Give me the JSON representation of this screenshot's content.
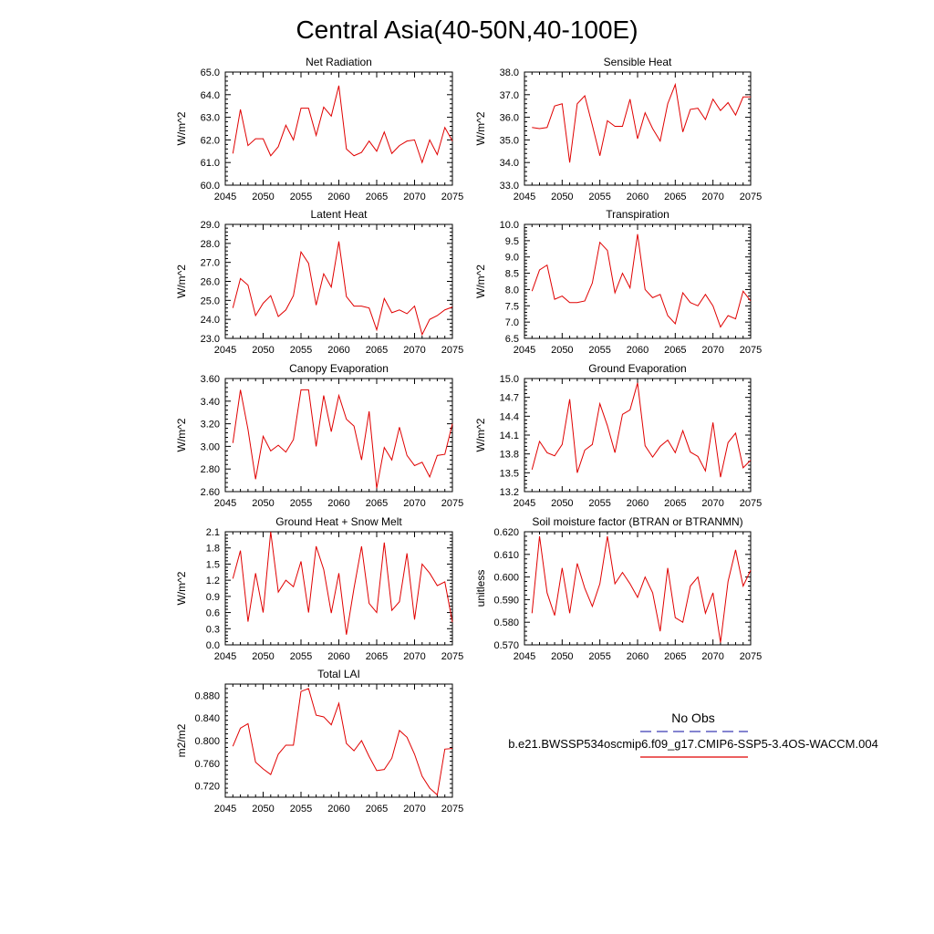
{
  "figure": {
    "title": "Central Asia(40-50N,40-100E)",
    "legend": {
      "obs_label": "No Obs",
      "model_label": "b.e21.BWSSP534oscmip6.f09_g17.CMIP6-SSP5-3.4OS-WACCM.004",
      "obs_color": "#3b3bb5",
      "model_color": "#e00000"
    },
    "line_color": "#e00000"
  },
  "chart_data": [
    {
      "type": "line",
      "title": "Net Radiation",
      "ylabel": "W/m^2",
      "xlim": [
        2045,
        2075
      ],
      "ylim": [
        60.0,
        65.0
      ],
      "xticks": [
        "2045",
        "2050",
        "2055",
        "2060",
        "2065",
        "2070",
        "2075"
      ],
      "yticks": [
        "60.0",
        "61.0",
        "62.0",
        "63.0",
        "64.0",
        "65.0"
      ],
      "yticks_values": [
        60.0,
        61.0,
        62.0,
        63.0,
        64.0,
        65.0
      ],
      "x": [
        2046,
        2047,
        2048,
        2049,
        2050,
        2051,
        2052,
        2053,
        2054,
        2055,
        2056,
        2057,
        2058,
        2059,
        2060,
        2061,
        2062,
        2063,
        2064,
        2065,
        2066,
        2067,
        2068,
        2069,
        2070,
        2071,
        2072,
        2073,
        2074,
        2075
      ],
      "values": [
        61.4,
        63.35,
        61.75,
        62.05,
        62.05,
        61.3,
        61.7,
        62.65,
        62.0,
        63.4,
        63.4,
        62.2,
        63.45,
        63.05,
        64.4,
        61.6,
        61.3,
        61.45,
        61.95,
        61.5,
        62.35,
        61.4,
        61.75,
        61.95,
        62.0,
        61.0,
        62.0,
        61.35,
        62.55,
        61.95
      ]
    },
    {
      "type": "line",
      "title": "Sensible Heat",
      "ylabel": "W/m^2",
      "xlim": [
        2045,
        2075
      ],
      "ylim": [
        33.0,
        38.0
      ],
      "xticks": [
        "2045",
        "2050",
        "2055",
        "2060",
        "2065",
        "2070",
        "2075"
      ],
      "yticks": [
        "33.0",
        "34.0",
        "35.0",
        "36.0",
        "37.0",
        "38.0"
      ],
      "yticks_values": [
        33.0,
        34.0,
        35.0,
        36.0,
        37.0,
        38.0
      ],
      "x": [
        2046,
        2047,
        2048,
        2049,
        2050,
        2051,
        2052,
        2053,
        2054,
        2055,
        2056,
        2057,
        2058,
        2059,
        2060,
        2061,
        2062,
        2063,
        2064,
        2065,
        2066,
        2067,
        2068,
        2069,
        2070,
        2071,
        2072,
        2073,
        2074,
        2075
      ],
      "values": [
        35.55,
        35.5,
        35.55,
        36.5,
        36.6,
        34.0,
        36.6,
        36.95,
        35.65,
        34.3,
        35.85,
        35.6,
        35.6,
        36.8,
        35.05,
        36.2,
        35.5,
        34.95,
        36.6,
        37.45,
        35.35,
        36.35,
        36.4,
        35.9,
        36.8,
        36.3,
        36.65,
        36.1,
        36.9,
        36.9
      ]
    },
    {
      "type": "line",
      "title": "Latent Heat",
      "ylabel": "W/m^2",
      "xlim": [
        2045,
        2075
      ],
      "ylim": [
        23.0,
        29.0
      ],
      "xticks": [
        "2045",
        "2050",
        "2055",
        "2060",
        "2065",
        "2070",
        "2075"
      ],
      "yticks": [
        "23.0",
        "24.0",
        "25.0",
        "26.0",
        "27.0",
        "28.0",
        "29.0"
      ],
      "yticks_values": [
        23.0,
        24.0,
        25.0,
        26.0,
        27.0,
        28.0,
        29.0
      ],
      "x": [
        2046,
        2047,
        2048,
        2049,
        2050,
        2051,
        2052,
        2053,
        2054,
        2055,
        2056,
        2057,
        2058,
        2059,
        2060,
        2061,
        2062,
        2063,
        2064,
        2065,
        2066,
        2067,
        2068,
        2069,
        2070,
        2071,
        2072,
        2073,
        2074,
        2075
      ],
      "values": [
        24.6,
        26.15,
        25.8,
        24.2,
        24.85,
        25.25,
        24.15,
        24.5,
        25.25,
        27.55,
        26.95,
        24.75,
        26.4,
        25.7,
        28.1,
        25.2,
        24.7,
        24.7,
        24.6,
        23.45,
        25.1,
        24.35,
        24.5,
        24.3,
        24.7,
        23.2,
        24.0,
        24.2,
        24.5,
        24.65
      ]
    },
    {
      "type": "line",
      "title": "Transpiration",
      "ylabel": "W/m^2",
      "xlim": [
        2045,
        2075
      ],
      "ylim": [
        6.5,
        10.0
      ],
      "xticks": [
        "2045",
        "2050",
        "2055",
        "2060",
        "2065",
        "2070",
        "2075"
      ],
      "yticks": [
        "6.5",
        "7.0",
        "7.5",
        "8.0",
        "8.5",
        "9.0",
        "9.5",
        "10.0"
      ],
      "yticks_values": [
        6.5,
        7.0,
        7.5,
        8.0,
        8.5,
        9.0,
        9.5,
        10.0
      ],
      "x": [
        2046,
        2047,
        2048,
        2049,
        2050,
        2051,
        2052,
        2053,
        2054,
        2055,
        2056,
        2057,
        2058,
        2059,
        2060,
        2061,
        2062,
        2063,
        2064,
        2065,
        2066,
        2067,
        2068,
        2069,
        2070,
        2071,
        2072,
        2073,
        2074,
        2075
      ],
      "values": [
        7.95,
        8.6,
        8.75,
        7.7,
        7.8,
        7.6,
        7.6,
        7.65,
        8.2,
        9.45,
        9.2,
        7.9,
        8.5,
        8.05,
        9.7,
        8.0,
        7.75,
        7.85,
        7.2,
        6.95,
        7.9,
        7.6,
        7.5,
        7.85,
        7.5,
        6.85,
        7.2,
        7.1,
        7.95,
        7.65
      ]
    },
    {
      "type": "line",
      "title": "Canopy Evaporation",
      "ylabel": "W/m^2",
      "xlim": [
        2045,
        2075
      ],
      "ylim": [
        2.6,
        3.6
      ],
      "xticks": [
        "2045",
        "2050",
        "2055",
        "2060",
        "2065",
        "2070",
        "2075"
      ],
      "yticks": [
        "2.60",
        "2.80",
        "3.00",
        "3.20",
        "3.40",
        "3.60"
      ],
      "yticks_values": [
        2.6,
        2.8,
        3.0,
        3.2,
        3.4,
        3.6
      ],
      "x": [
        2046,
        2047,
        2048,
        2049,
        2050,
        2051,
        2052,
        2053,
        2054,
        2055,
        2056,
        2057,
        2058,
        2059,
        2060,
        2061,
        2062,
        2063,
        2064,
        2065,
        2066,
        2067,
        2068,
        2069,
        2070,
        2071,
        2072,
        2073,
        2074,
        2075
      ],
      "values": [
        3.03,
        3.5,
        3.15,
        2.71,
        3.09,
        2.96,
        3.01,
        2.95,
        3.06,
        3.5,
        3.5,
        3.0,
        3.45,
        3.13,
        3.45,
        3.24,
        3.18,
        2.88,
        3.31,
        2.63,
        2.99,
        2.88,
        3.17,
        2.92,
        2.83,
        2.86,
        2.73,
        2.92,
        2.93,
        3.2
      ]
    },
    {
      "type": "line",
      "title": "Ground Evaporation",
      "ylabel": "W/m^2",
      "xlim": [
        2045,
        2075
      ],
      "ylim": [
        13.2,
        15.0
      ],
      "xticks": [
        "2045",
        "2050",
        "2055",
        "2060",
        "2065",
        "2070",
        "2075"
      ],
      "yticks": [
        "13.2",
        "13.5",
        "13.8",
        "14.1",
        "14.4",
        "14.7",
        "15.0"
      ],
      "yticks_values": [
        13.2,
        13.5,
        13.8,
        14.1,
        14.4,
        14.7,
        15.0
      ],
      "x": [
        2046,
        2047,
        2048,
        2049,
        2050,
        2051,
        2052,
        2053,
        2054,
        2055,
        2056,
        2057,
        2058,
        2059,
        2060,
        2061,
        2062,
        2063,
        2064,
        2065,
        2066,
        2067,
        2068,
        2069,
        2070,
        2071,
        2072,
        2073,
        2074,
        2075
      ],
      "values": [
        13.55,
        14.0,
        13.82,
        13.77,
        13.95,
        14.67,
        13.5,
        13.86,
        13.95,
        14.6,
        14.25,
        13.82,
        14.43,
        14.5,
        14.93,
        13.93,
        13.75,
        13.92,
        14.02,
        13.82,
        14.17,
        13.83,
        13.76,
        13.53,
        14.3,
        13.43,
        13.98,
        14.13,
        13.58,
        13.7
      ]
    },
    {
      "type": "line",
      "title": "Ground Heat + Snow Melt",
      "ylabel": "W/m^2",
      "xlim": [
        2045,
        2075
      ],
      "ylim": [
        0.0,
        2.1
      ],
      "xticks": [
        "2045",
        "2050",
        "2055",
        "2060",
        "2065",
        "2070",
        "2075"
      ],
      "yticks": [
        "0.0",
        "0.3",
        "0.6",
        "0.9",
        "1.2",
        "1.5",
        "1.8",
        "2.1"
      ],
      "yticks_values": [
        0.0,
        0.3,
        0.6,
        0.9,
        1.2,
        1.5,
        1.8,
        2.1
      ],
      "x": [
        2046,
        2047,
        2048,
        2049,
        2050,
        2051,
        2052,
        2053,
        2054,
        2055,
        2056,
        2057,
        2058,
        2059,
        2060,
        2061,
        2062,
        2063,
        2064,
        2065,
        2066,
        2067,
        2068,
        2069,
        2070,
        2071,
        2072,
        2073,
        2074,
        2075
      ],
      "values": [
        1.23,
        1.75,
        0.43,
        1.33,
        0.6,
        2.1,
        0.98,
        1.2,
        1.08,
        1.55,
        0.6,
        1.83,
        1.4,
        0.59,
        1.33,
        0.19,
        1.05,
        1.83,
        0.77,
        0.6,
        1.9,
        0.64,
        0.8,
        1.7,
        0.47,
        1.5,
        1.33,
        1.1,
        1.17,
        0.42
      ]
    },
    {
      "type": "line",
      "title": "Soil moisture factor (BTRAN or BTRANMN)",
      "ylabel": "unitless",
      "xlim": [
        2045,
        2075
      ],
      "ylim": [
        0.57,
        0.62
      ],
      "xticks": [
        "2045",
        "2050",
        "2055",
        "2060",
        "2065",
        "2070",
        "2075"
      ],
      "yticks": [
        "0.570",
        "0.580",
        "0.590",
        "0.600",
        "0.610",
        "0.620"
      ],
      "yticks_values": [
        0.57,
        0.58,
        0.59,
        0.6,
        0.61,
        0.62
      ],
      "x": [
        2046,
        2047,
        2048,
        2049,
        2050,
        2051,
        2052,
        2053,
        2054,
        2055,
        2056,
        2057,
        2058,
        2059,
        2060,
        2061,
        2062,
        2063,
        2064,
        2065,
        2066,
        2067,
        2068,
        2069,
        2070,
        2071,
        2072,
        2073,
        2074,
        2075
      ],
      "values": [
        0.584,
        0.618,
        0.593,
        0.583,
        0.604,
        0.584,
        0.606,
        0.595,
        0.587,
        0.597,
        0.618,
        0.597,
        0.602,
        0.597,
        0.591,
        0.6,
        0.593,
        0.576,
        0.604,
        0.582,
        0.58,
        0.596,
        0.6,
        0.584,
        0.593,
        0.571,
        0.598,
        0.612,
        0.596,
        0.603
      ]
    },
    {
      "type": "line",
      "title": "Total LAI",
      "ylabel": "m2/m2",
      "xlim": [
        2045,
        2075
      ],
      "ylim": [
        0.7,
        0.9
      ],
      "xticks": [
        "2045",
        "2050",
        "2055",
        "2060",
        "2065",
        "2070",
        "2075"
      ],
      "yticks": [
        "0.720",
        "0.760",
        "0.800",
        "0.840",
        "0.880"
      ],
      "yticks_values": [
        0.72,
        0.76,
        0.8,
        0.84,
        0.88
      ],
      "x": [
        2046,
        2047,
        2048,
        2049,
        2050,
        2051,
        2052,
        2053,
        2054,
        2055,
        2056,
        2057,
        2058,
        2059,
        2060,
        2061,
        2062,
        2063,
        2064,
        2065,
        2066,
        2067,
        2068,
        2069,
        2070,
        2071,
        2072,
        2073,
        2074,
        2075
      ],
      "values": [
        0.79,
        0.822,
        0.83,
        0.762,
        0.75,
        0.74,
        0.776,
        0.792,
        0.792,
        0.887,
        0.892,
        0.845,
        0.842,
        0.828,
        0.866,
        0.795,
        0.782,
        0.8,
        0.772,
        0.747,
        0.749,
        0.769,
        0.818,
        0.806,
        0.776,
        0.737,
        0.716,
        0.704,
        0.785,
        0.786
      ]
    }
  ]
}
